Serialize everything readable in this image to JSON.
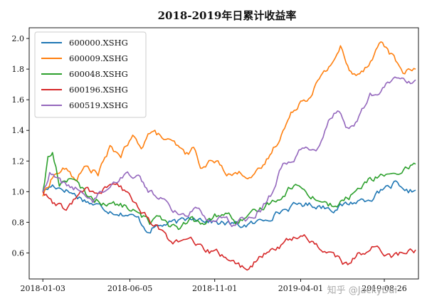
{
  "chart_data": {
    "type": "line",
    "title": "2018-2019年日累计收益率",
    "xlabel": "",
    "ylabel": "",
    "x_ticks": [
      "2018-01-03",
      "2018-06-05",
      "2018-11-01",
      "2019-04-01",
      "2019-08-26"
    ],
    "y_ticks": [
      "0.6",
      "0.8",
      "1.0",
      "1.2",
      "1.4",
      "1.6",
      "1.8",
      "2.0"
    ],
    "xlim": [
      "2017-12-10",
      "2019-10-25"
    ],
    "ylim": [
      0.43,
      2.07
    ],
    "grid": false,
    "legend_position": "top-left",
    "series": [
      {
        "name": "600000.XSHG",
        "color": "#1f77b4",
        "points": [
          [
            "2018-01-03",
            1.0
          ],
          [
            "2018-01-20",
            1.04
          ],
          [
            "2018-02-10",
            1.02
          ],
          [
            "2018-03-05",
            0.97
          ],
          [
            "2018-04-01",
            0.92
          ],
          [
            "2018-05-01",
            0.88
          ],
          [
            "2018-06-01",
            0.85
          ],
          [
            "2018-06-20",
            0.82
          ],
          [
            "2018-07-05",
            0.75
          ],
          [
            "2018-07-20",
            0.77
          ],
          [
            "2018-08-10",
            0.79
          ],
          [
            "2018-09-01",
            0.8
          ],
          [
            "2018-09-25",
            0.84
          ],
          [
            "2018-10-15",
            0.82
          ],
          [
            "2018-11-01",
            0.8
          ],
          [
            "2018-11-25",
            0.79
          ],
          [
            "2018-12-20",
            0.78
          ],
          [
            "2019-01-10",
            0.79
          ],
          [
            "2019-02-01",
            0.83
          ],
          [
            "2019-03-01",
            0.88
          ],
          [
            "2019-04-01",
            0.92
          ],
          [
            "2019-05-01",
            0.91
          ],
          [
            "2019-06-01",
            0.89
          ],
          [
            "2019-07-01",
            0.93
          ],
          [
            "2019-08-01",
            0.96
          ],
          [
            "2019-09-01",
            1.02
          ],
          [
            "2019-09-15",
            1.05
          ],
          [
            "2019-10-01",
            0.98
          ],
          [
            "2019-10-20",
            1.01
          ]
        ]
      },
      {
        "name": "600009.XSHG",
        "color": "#ff7f0e",
        "points": [
          [
            "2018-01-03",
            0.97
          ],
          [
            "2018-01-20",
            1.1
          ],
          [
            "2018-02-10",
            1.15
          ],
          [
            "2018-03-01",
            1.08
          ],
          [
            "2018-03-20",
            1.16
          ],
          [
            "2018-04-10",
            1.12
          ],
          [
            "2018-05-01",
            1.28
          ],
          [
            "2018-05-20",
            1.24
          ],
          [
            "2018-06-10",
            1.35
          ],
          [
            "2018-06-25",
            1.3
          ],
          [
            "2018-07-10",
            1.39
          ],
          [
            "2018-07-25",
            1.37
          ],
          [
            "2018-08-10",
            1.33
          ],
          [
            "2018-08-25",
            1.3
          ],
          [
            "2018-09-10",
            1.24
          ],
          [
            "2018-09-25",
            1.28
          ],
          [
            "2018-10-10",
            1.15
          ],
          [
            "2018-10-25",
            1.2
          ],
          [
            "2018-11-10",
            1.18
          ],
          [
            "2018-11-25",
            1.12
          ],
          [
            "2018-12-20",
            1.12
          ],
          [
            "2019-01-10",
            1.1
          ],
          [
            "2019-01-25",
            1.16
          ],
          [
            "2019-02-15",
            1.3
          ],
          [
            "2019-03-01",
            1.4
          ],
          [
            "2019-03-15",
            1.5
          ],
          [
            "2019-04-01",
            1.6
          ],
          [
            "2019-04-15",
            1.62
          ],
          [
            "2019-05-01",
            1.72
          ],
          [
            "2019-05-15",
            1.78
          ],
          [
            "2019-06-01",
            1.88
          ],
          [
            "2019-06-10",
            1.95
          ],
          [
            "2019-06-20",
            1.83
          ],
          [
            "2019-07-01",
            1.76
          ],
          [
            "2019-07-20",
            1.8
          ],
          [
            "2019-08-05",
            1.88
          ],
          [
            "2019-08-20",
            1.98
          ],
          [
            "2019-09-01",
            1.93
          ],
          [
            "2019-09-15",
            1.85
          ],
          [
            "2019-10-01",
            1.78
          ],
          [
            "2019-10-20",
            1.8
          ]
        ]
      },
      {
        "name": "600048.XSHG",
        "color": "#2ca02c",
        "points": [
          [
            "2018-01-03",
            1.0
          ],
          [
            "2018-01-12",
            1.22
          ],
          [
            "2018-01-20",
            1.25
          ],
          [
            "2018-02-01",
            1.05
          ],
          [
            "2018-02-20",
            1.1
          ],
          [
            "2018-03-10",
            1.02
          ],
          [
            "2018-04-01",
            0.95
          ],
          [
            "2018-05-01",
            0.92
          ],
          [
            "2018-06-01",
            0.9
          ],
          [
            "2018-06-20",
            0.85
          ],
          [
            "2018-07-10",
            0.8
          ],
          [
            "2018-07-25",
            0.86
          ],
          [
            "2018-08-15",
            0.78
          ],
          [
            "2018-09-01",
            0.75
          ],
          [
            "2018-09-20",
            0.82
          ],
          [
            "2018-10-10",
            0.78
          ],
          [
            "2018-11-01",
            0.84
          ],
          [
            "2018-11-20",
            0.86
          ],
          [
            "2018-12-10",
            0.8
          ],
          [
            "2019-01-01",
            0.83
          ],
          [
            "2019-02-01",
            0.92
          ],
          [
            "2019-03-01",
            0.98
          ],
          [
            "2019-03-20",
            1.05
          ],
          [
            "2019-04-10",
            1.0
          ],
          [
            "2019-05-01",
            0.95
          ],
          [
            "2019-06-01",
            0.9
          ],
          [
            "2019-07-01",
            0.98
          ],
          [
            "2019-08-01",
            1.08
          ],
          [
            "2019-09-01",
            1.12
          ],
          [
            "2019-09-20",
            1.08
          ],
          [
            "2019-10-05",
            1.15
          ],
          [
            "2019-10-20",
            1.18
          ]
        ]
      },
      {
        "name": "600196.XSHG",
        "color": "#d62728",
        "points": [
          [
            "2018-01-03",
            1.0
          ],
          [
            "2018-01-20",
            0.92
          ],
          [
            "2018-02-10",
            0.88
          ],
          [
            "2018-03-01",
            0.95
          ],
          [
            "2018-03-20",
            1.02
          ],
          [
            "2018-04-10",
            0.98
          ],
          [
            "2018-05-01",
            1.05
          ],
          [
            "2018-05-20",
            1.02
          ],
          [
            "2018-06-10",
            0.95
          ],
          [
            "2018-07-01",
            0.85
          ],
          [
            "2018-07-20",
            0.78
          ],
          [
            "2018-08-10",
            0.7
          ],
          [
            "2018-09-01",
            0.66
          ],
          [
            "2018-09-20",
            0.68
          ],
          [
            "2018-10-10",
            0.62
          ],
          [
            "2018-11-01",
            0.6
          ],
          [
            "2018-11-20",
            0.58
          ],
          [
            "2018-12-10",
            0.52
          ],
          [
            "2018-12-25",
            0.5
          ],
          [
            "2019-01-15",
            0.55
          ],
          [
            "2019-02-10",
            0.62
          ],
          [
            "2019-03-10",
            0.68
          ],
          [
            "2019-04-01",
            0.72
          ],
          [
            "2019-04-20",
            0.68
          ],
          [
            "2019-05-10",
            0.62
          ],
          [
            "2019-06-01",
            0.58
          ],
          [
            "2019-06-20",
            0.52
          ],
          [
            "2019-07-10",
            0.58
          ],
          [
            "2019-08-01",
            0.64
          ],
          [
            "2019-08-20",
            0.62
          ],
          [
            "2019-09-10",
            0.58
          ],
          [
            "2019-10-01",
            0.6
          ],
          [
            "2019-10-20",
            0.62
          ]
        ]
      },
      {
        "name": "600519.XSHG",
        "color": "#9467bd",
        "points": [
          [
            "2018-01-03",
            1.0
          ],
          [
            "2018-01-15",
            1.12
          ],
          [
            "2018-02-05",
            1.06
          ],
          [
            "2018-03-01",
            1.02
          ],
          [
            "2018-04-01",
            0.95
          ],
          [
            "2018-05-01",
            1.05
          ],
          [
            "2018-06-01",
            1.12
          ],
          [
            "2018-06-20",
            1.1
          ],
          [
            "2018-07-10",
            1.0
          ],
          [
            "2018-08-01",
            0.95
          ],
          [
            "2018-08-20",
            0.88
          ],
          [
            "2018-09-10",
            0.84
          ],
          [
            "2018-10-01",
            0.9
          ],
          [
            "2018-10-20",
            0.82
          ],
          [
            "2018-11-10",
            0.85
          ],
          [
            "2018-12-01",
            0.8
          ],
          [
            "2018-12-25",
            0.82
          ],
          [
            "2019-01-20",
            0.88
          ],
          [
            "2019-02-10",
            1.0
          ],
          [
            "2019-03-01",
            1.18
          ],
          [
            "2019-03-20",
            1.22
          ],
          [
            "2019-04-10",
            1.3
          ],
          [
            "2019-05-01",
            1.28
          ],
          [
            "2019-05-20",
            1.48
          ],
          [
            "2019-06-05",
            1.52
          ],
          [
            "2019-06-25",
            1.4
          ],
          [
            "2019-07-15",
            1.5
          ],
          [
            "2019-08-01",
            1.62
          ],
          [
            "2019-08-20",
            1.65
          ],
          [
            "2019-09-01",
            1.7
          ],
          [
            "2019-09-20",
            1.75
          ],
          [
            "2019-10-05",
            1.7
          ],
          [
            "2019-10-20",
            1.73
          ]
        ]
      }
    ]
  },
  "watermark": "知乎 @JackyDai"
}
